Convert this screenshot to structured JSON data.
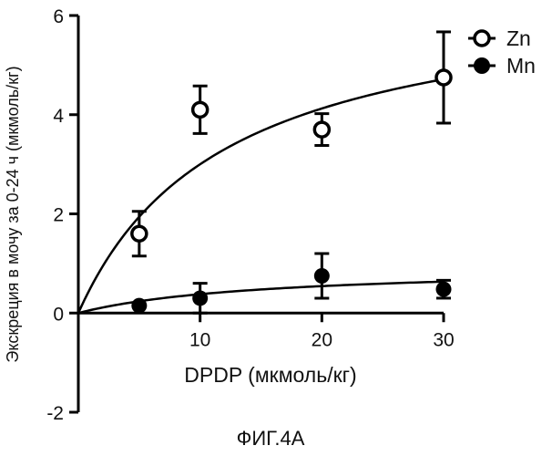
{
  "figure_caption": "ФИГ.4А",
  "chart_data": {
    "type": "scatter",
    "xlabel": "DPDP (мкмоль/кг)",
    "ylabel": "Экскреция в мочу за 0-24 ч (мкмоль/кг)",
    "xlim": [
      0,
      30
    ],
    "ylim": [
      -2,
      6
    ],
    "xticks": [
      10,
      20,
      30
    ],
    "yticks": [
      -2,
      0,
      2,
      4,
      6
    ],
    "grid": false,
    "legend_position": "top-right",
    "series": [
      {
        "name": "Zn",
        "marker": "open-circle",
        "color": "#000000",
        "x": [
          5,
          10,
          20,
          30
        ],
        "y": [
          1.6,
          4.1,
          3.7,
          4.75
        ],
        "error": [
          0.45,
          0.48,
          0.32,
          0.92
        ],
        "fit": {
          "model": "hyperbola",
          "vmax": 6.6,
          "km": 12.0
        }
      },
      {
        "name": "Mn",
        "marker": "filled-circle",
        "color": "#000000",
        "x": [
          5,
          10,
          20,
          30
        ],
        "y": [
          0.15,
          0.3,
          0.75,
          0.48
        ],
        "error": [
          0.0,
          0.3,
          0.45,
          0.18
        ],
        "fit": {
          "model": "hyperbola",
          "vmax": 0.95,
          "km": 15.0
        }
      }
    ]
  }
}
